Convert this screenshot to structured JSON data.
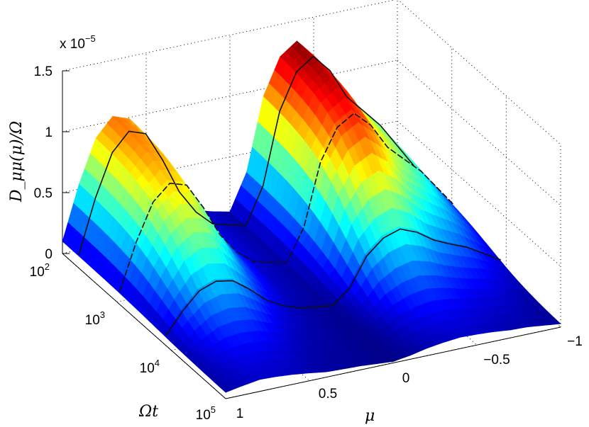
{
  "chart_data": {
    "type": "surface",
    "title": "",
    "exponent_label": "x 10",
    "exponent_power": "−5",
    "zlabel": "D_μμ(μ)/Ω",
    "xlabel": "μ",
    "ylabel": "Ωt",
    "x_ticks": [
      "1",
      "0.5",
      "0",
      "−0.5",
      "−1"
    ],
    "y_ticks": [
      {
        "base": "10",
        "power": "2"
      },
      {
        "base": "10",
        "power": "3"
      },
      {
        "base": "10",
        "power": "4"
      },
      {
        "base": "10",
        "power": "5"
      }
    ],
    "z_ticks": [
      "0",
      "0.5",
      "1",
      "1.5"
    ],
    "xlim": [
      1,
      -1
    ],
    "ylim_log10": [
      2,
      5
    ],
    "zlim": [
      0,
      1.5
    ],
    "mu_grid": [
      1,
      0.9,
      0.8,
      0.7,
      0.6,
      0.5,
      0.4,
      0.3,
      0.2,
      0.1,
      0,
      -0.1,
      -0.2,
      -0.3,
      -0.4,
      -0.5,
      -0.6,
      -0.7,
      -0.8,
      -0.9,
      -1
    ],
    "log10_t_grid": [
      2,
      2.5,
      3,
      3.5,
      4,
      4.5,
      5
    ],
    "z_early": [
      0.1,
      0.55,
      0.9,
      1.05,
      1.0,
      0.75,
      0.45,
      0.25,
      0.12,
      0.08,
      0.05,
      0.35,
      0.95,
      1.25,
      1.35,
      1.2,
      0.95,
      0.8,
      0.65,
      0.45,
      0.25
    ],
    "z_late": [
      0.05,
      0.06,
      0.07,
      0.06,
      0.05,
      0.04,
      0.03,
      0.03,
      0.03,
      0.02,
      0.01,
      0.02,
      0.03,
      0.04,
      0.05,
      0.05,
      0.05,
      0.04,
      0.04,
      0.03,
      0.02
    ],
    "ridge_curves": [
      {
        "name": "Ωt = 10^2 contour",
        "log10_t": 2.3,
        "style": "solid"
      },
      {
        "name": "Ωt = 10^3 contour",
        "log10_t": 3.05,
        "style": "dashed"
      },
      {
        "name": "Ωt = 10^4 contour",
        "log10_t": 3.9,
        "style": "solid"
      }
    ],
    "colormap": "jet",
    "grid": true
  }
}
